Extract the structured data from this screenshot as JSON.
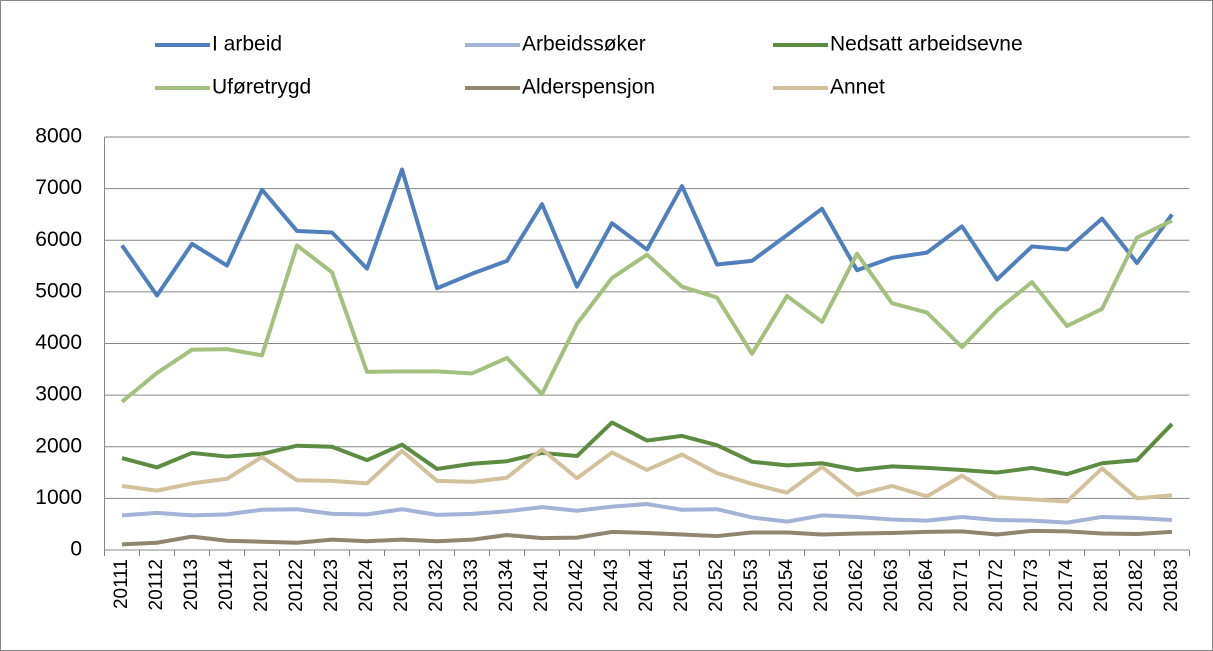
{
  "chart_data": {
    "type": "line",
    "categories": [
      "20111",
      "20112",
      "20113",
      "20114",
      "20121",
      "20122",
      "20123",
      "20124",
      "20131",
      "20132",
      "20133",
      "20134",
      "20141",
      "20142",
      "20143",
      "20144",
      "20151",
      "20152",
      "20153",
      "20154",
      "20161",
      "20162",
      "20163",
      "20164",
      "20171",
      "20172",
      "20173",
      "20174",
      "20181",
      "20182",
      "20183"
    ],
    "series": [
      {
        "name": "I arbeid",
        "color": "#4f7fbd",
        "values": [
          5900,
          4930,
          5930,
          5510,
          6980,
          6180,
          6150,
          5450,
          7370,
          5070,
          5350,
          5600,
          6700,
          5100,
          6330,
          5820,
          7050,
          5530,
          5600,
          6100,
          6610,
          5420,
          5660,
          5760,
          6270,
          5240,
          5880,
          5820,
          6420,
          5560,
          6500
        ]
      },
      {
        "name": "Arbeidssøker",
        "color": "#a2b3d6",
        "values": [
          670,
          720,
          670,
          690,
          780,
          790,
          700,
          690,
          790,
          680,
          700,
          750,
          830,
          760,
          840,
          890,
          780,
          790,
          630,
          550,
          670,
          640,
          590,
          570,
          640,
          580,
          570,
          530,
          640,
          620,
          580
        ]
      },
      {
        "name": "Nedsatt arbeidsevne",
        "color": "#5d8b41",
        "values": [
          1780,
          1600,
          1880,
          1810,
          1860,
          2020,
          2000,
          1740,
          2040,
          1570,
          1670,
          1720,
          1880,
          1820,
          2470,
          2120,
          2210,
          2030,
          1710,
          1640,
          1680,
          1550,
          1620,
          1590,
          1550,
          1500,
          1590,
          1470,
          1680,
          1740,
          2440
        ]
      },
      {
        "name": "Uføretrygd",
        "color": "#a3c07e",
        "values": [
          2870,
          3430,
          3880,
          3890,
          3770,
          5900,
          5380,
          3450,
          3460,
          3460,
          3420,
          3720,
          3020,
          4380,
          5270,
          5720,
          5100,
          4890,
          3800,
          4920,
          4420,
          5740,
          4780,
          4600,
          3930,
          4640,
          5190,
          4340,
          4670,
          6050,
          6380
        ]
      },
      {
        "name": "Alderspensjon",
        "color": "#908571",
        "values": [
          110,
          140,
          260,
          180,
          160,
          140,
          200,
          170,
          200,
          170,
          200,
          290,
          230,
          240,
          350,
          330,
          300,
          270,
          340,
          340,
          300,
          320,
          330,
          350,
          360,
          300,
          370,
          360,
          320,
          310,
          350
        ]
      },
      {
        "name": "Annet",
        "color": "#d2c19d",
        "values": [
          1240,
          1150,
          1290,
          1380,
          1800,
          1350,
          1340,
          1290,
          1920,
          1340,
          1320,
          1400,
          1950,
          1390,
          1890,
          1550,
          1850,
          1490,
          1280,
          1110,
          1610,
          1070,
          1240,
          1040,
          1440,
          1020,
          980,
          940,
          1580,
          1000,
          1060
        ]
      }
    ],
    "ylim": [
      0,
      8000
    ],
    "yticks": [
      0,
      1000,
      2000,
      3000,
      4000,
      5000,
      6000,
      7000,
      8000
    ],
    "grid": true,
    "legend": "top"
  }
}
